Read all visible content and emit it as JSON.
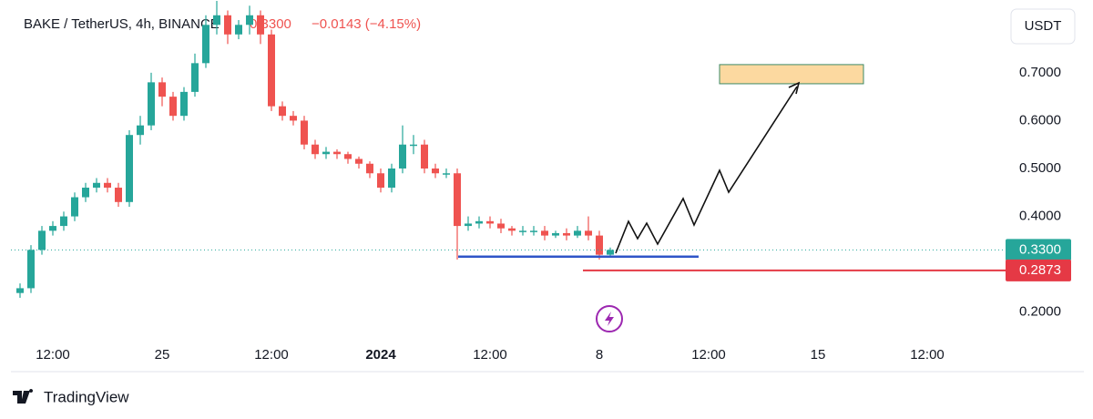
{
  "chart_data": {
    "type": "candlestick",
    "title": "BAKE / TetherUS, 4h, BINANCE",
    "change": "−0.0143 (−4.15%)",
    "currency": "USDT",
    "brand": "TradingView",
    "up_color": "#26a69a",
    "down_color": "#ef5350",
    "open": [
      0.24,
      0.25,
      0.33,
      0.37,
      0.38,
      0.4,
      0.44,
      0.46,
      0.47,
      0.46,
      0.43,
      0.57,
      0.59,
      0.68,
      0.65,
      0.61,
      0.66,
      0.72,
      0.8,
      0.82,
      0.78,
      0.8,
      0.82,
      0.78,
      0.63,
      0.61,
      0.6,
      0.55,
      0.53,
      0.535,
      0.53,
      0.52,
      0.51,
      0.49,
      0.46,
      0.5,
      0.55,
      0.55,
      0.5,
      0.49,
      0.49,
      0.38,
      0.385,
      0.39,
      0.385,
      0.375,
      0.37,
      0.37,
      0.37,
      0.36,
      0.365,
      0.36,
      0.37,
      0.36,
      0.32
    ],
    "high": [
      0.26,
      0.34,
      0.38,
      0.39,
      0.41,
      0.45,
      0.47,
      0.48,
      0.48,
      0.47,
      0.58,
      0.61,
      0.7,
      0.69,
      0.66,
      0.67,
      0.74,
      0.82,
      0.85,
      0.83,
      0.81,
      0.84,
      0.83,
      0.79,
      0.64,
      0.62,
      0.61,
      0.56,
      0.545,
      0.54,
      0.535,
      0.525,
      0.515,
      0.5,
      0.51,
      0.59,
      0.57,
      0.56,
      0.51,
      0.5,
      0.5,
      0.4,
      0.4,
      0.4,
      0.395,
      0.38,
      0.38,
      0.38,
      0.38,
      0.37,
      0.375,
      0.38,
      0.4,
      0.37,
      0.335
    ],
    "low": [
      0.23,
      0.24,
      0.32,
      0.36,
      0.37,
      0.39,
      0.43,
      0.45,
      0.45,
      0.42,
      0.42,
      0.55,
      0.58,
      0.63,
      0.6,
      0.6,
      0.65,
      0.71,
      0.78,
      0.76,
      0.77,
      0.78,
      0.76,
      0.62,
      0.6,
      0.59,
      0.54,
      0.52,
      0.52,
      0.52,
      0.51,
      0.5,
      0.48,
      0.45,
      0.45,
      0.49,
      0.53,
      0.49,
      0.48,
      0.48,
      0.31,
      0.37,
      0.375,
      0.375,
      0.365,
      0.36,
      0.36,
      0.36,
      0.35,
      0.355,
      0.35,
      0.355,
      0.35,
      0.31,
      0.315
    ],
    "close": [
      0.25,
      0.33,
      0.37,
      0.38,
      0.4,
      0.44,
      0.46,
      0.47,
      0.46,
      0.43,
      0.57,
      0.59,
      0.68,
      0.65,
      0.61,
      0.66,
      0.72,
      0.8,
      0.82,
      0.78,
      0.8,
      0.82,
      0.78,
      0.63,
      0.61,
      0.6,
      0.55,
      0.53,
      0.535,
      0.53,
      0.52,
      0.51,
      0.49,
      0.46,
      0.5,
      0.55,
      0.55,
      0.5,
      0.49,
      0.49,
      0.38,
      0.385,
      0.39,
      0.385,
      0.375,
      0.37,
      0.37,
      0.37,
      0.36,
      0.365,
      0.36,
      0.37,
      0.36,
      0.32,
      0.33
    ],
    "last_price": {
      "value": 0.33,
      "label": "0.3300",
      "color": "#26a69a"
    },
    "alert_line": {
      "value": 0.2873,
      "label": "0.2873",
      "color": "#e53945"
    },
    "support_line": {
      "value": 0.316,
      "color": "#2f55c8"
    },
    "target_zone": [
      0.677,
      0.717
    ],
    "ylim": [
      0.15,
      0.85
    ],
    "yticks": [
      {
        "value": 0.2,
        "label": "0.2000"
      },
      {
        "value": 0.4,
        "label": "0.4000"
      },
      {
        "value": 0.5,
        "label": "0.5000"
      },
      {
        "value": 0.6,
        "label": "0.6000"
      },
      {
        "value": 0.7,
        "label": "0.7000"
      }
    ],
    "xticks": [
      {
        "value": 3,
        "label": "12:00"
      },
      {
        "value": 13,
        "label": "25"
      },
      {
        "value": 23,
        "label": "12:00"
      },
      {
        "value": 33,
        "label": "2024"
      },
      {
        "value": 43,
        "label": "12:00"
      },
      {
        "value": 53,
        "label": "8"
      },
      {
        "value": 63,
        "label": "12:00"
      },
      {
        "value": 73,
        "label": "15"
      },
      {
        "value": 83,
        "label": "12:00"
      }
    ]
  }
}
